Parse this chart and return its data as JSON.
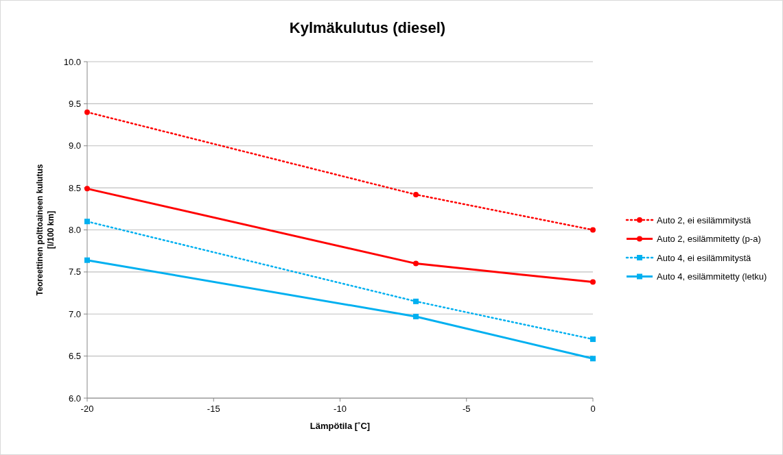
{
  "chart_data": {
    "type": "line",
    "title": "Kylmäkulutus (diesel)",
    "xlabel": "Lämpötila [˚C]",
    "ylabel": "Teoreettinen polttoaineen kulutus\n[l/100 km]",
    "x": [
      -20,
      -7,
      0
    ],
    "series": [
      {
        "name": "Auto 2, ei esilämmitystä",
        "color": "#ff0000",
        "values": [
          9.4,
          8.42,
          8.0
        ],
        "line_style": "dotted",
        "marker": "circle"
      },
      {
        "name": "Auto 2, esilämmitetty (p-a)",
        "color": "#ff0000",
        "values": [
          8.49,
          7.6,
          7.38
        ],
        "line_style": "solid",
        "marker": "circle"
      },
      {
        "name": "Auto 4, ei esilämmitystä",
        "color": "#00b0f0",
        "values": [
          8.1,
          7.15,
          6.7
        ],
        "line_style": "dotted",
        "marker": "square"
      },
      {
        "name": "Auto 4, esilämmitetty (letku)",
        "color": "#00b0f0",
        "values": [
          7.64,
          6.97,
          6.47
        ],
        "line_style": "solid",
        "marker": "square"
      }
    ],
    "xlim": [
      -20,
      0
    ],
    "xticks": [
      -20,
      -15,
      -10,
      -5,
      0
    ],
    "ylim": [
      6,
      10
    ],
    "yticks": [
      {
        "value": 6,
        "label": "6.0"
      },
      {
        "value": 6.5,
        "label": "6.5"
      },
      {
        "value": 7,
        "label": "7.0"
      },
      {
        "value": 7.5,
        "label": "7.5"
      },
      {
        "value": 8,
        "label": "8.0"
      },
      {
        "value": 8.5,
        "label": "8.5"
      },
      {
        "value": 9,
        "label": "9.0"
      },
      {
        "value": 9.5,
        "label": "9.5"
      },
      {
        "value": 10,
        "label": "10.0"
      }
    ],
    "grid": "y",
    "legend": "right"
  }
}
